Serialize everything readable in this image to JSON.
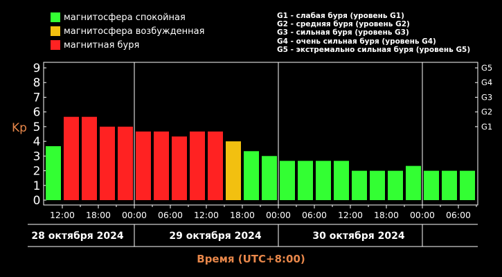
{
  "legend": {
    "items": [
      {
        "label": "магнитосфера спокойная",
        "color": "#33ff33"
      },
      {
        "label": "магнитосфера возбужденная",
        "color": "#f2c010"
      },
      {
        "label": "магнитная буря",
        "color": "#ff2222"
      }
    ],
    "g_levels": [
      "G1 - слабая буря (уровень G1)",
      "G2 - средняя буря (уровень G2)",
      "G3 - сильная буря (уровень G3)",
      "G4 - очень сильная буря (уровень G4)",
      "G5 - экстремально сильная буря (уровень G5)"
    ]
  },
  "chart_data": {
    "type": "bar",
    "ylabel": "Kp",
    "xlabel": "Время (UTC+8:00)",
    "ylim": [
      0,
      9
    ],
    "yticks": [
      "0",
      "1",
      "2",
      "3",
      "4",
      "5",
      "6",
      "7",
      "8",
      "9"
    ],
    "right_ticks": [
      {
        "label": "G1",
        "value": 5
      },
      {
        "label": "G2",
        "value": 6
      },
      {
        "label": "G3",
        "value": 7
      },
      {
        "label": "G4",
        "value": 8
      },
      {
        "label": "G5",
        "value": 9
      }
    ],
    "x_tick_labels": [
      "12:00",
      "18:00",
      "00:00",
      "06:00",
      "12:00",
      "18:00",
      "00:00",
      "06:00",
      "12:00",
      "18:00",
      "00:00",
      "06:00"
    ],
    "day_labels": [
      "28 октября 2024",
      "29 октября 2024",
      "30 октября 2024"
    ],
    "values": [
      3.67,
      5.67,
      5.67,
      5.0,
      5.0,
      4.67,
      4.67,
      4.33,
      4.67,
      4.67,
      4.0,
      3.33,
      3.0,
      2.67,
      2.67,
      2.67,
      2.67,
      2.0,
      2.0,
      2.0,
      2.33,
      2.0,
      2.0,
      2.0
    ],
    "colors": {
      "quiet": "#33ff33",
      "active": "#f2c010",
      "storm": "#ff2222"
    },
    "grid": false
  }
}
